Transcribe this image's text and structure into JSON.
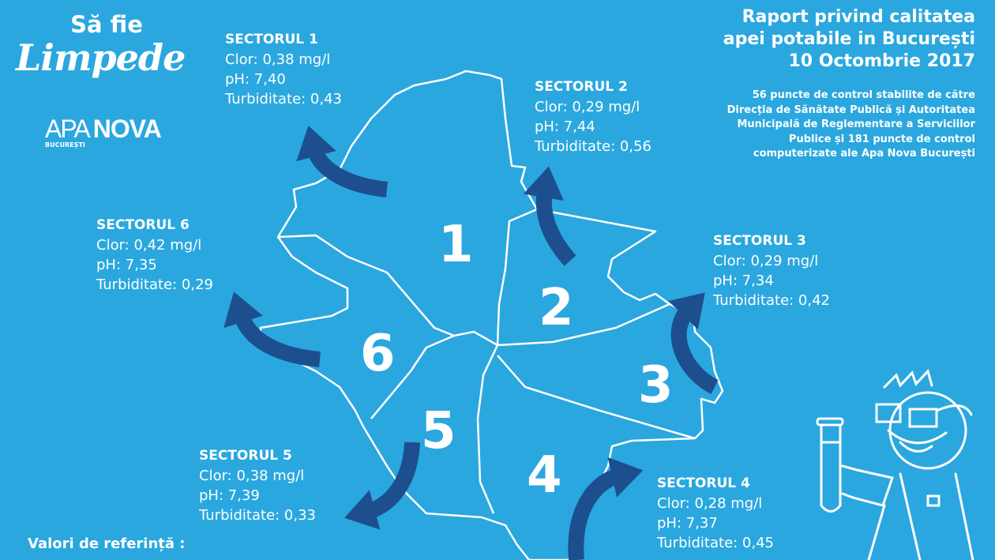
{
  "brand": {
    "line1": "Să fie",
    "line2": "Limpede"
  },
  "logo": {
    "apa": "APA",
    "nova": "NOVA",
    "city": "BUCUREȘTI"
  },
  "title": {
    "lines": [
      "Raport privind calitatea",
      "apei potabile in București",
      "10 Octombrie 2017"
    ]
  },
  "subtitle": {
    "lines": [
      "56 puncte de control stabilite de către",
      "Direcția de Sănătate Publică și Autoritatea",
      "Municipală de Reglementare a Serviciilor",
      "Publice și 181 puncte de control",
      "computerizate ale Apa Nova București"
    ]
  },
  "sectors": [
    {
      "name": "SECTORUL 1",
      "number": "1",
      "clor": "Clor: 0,38 mg/l",
      "ph": "pH: 7,40",
      "turb": "Turbiditate: 0,43"
    },
    {
      "name": "SECTORUL 2",
      "number": "2",
      "clor": "Clor: 0,29 mg/l",
      "ph": "pH: 7,44",
      "turb": "Turbiditate: 0,56"
    },
    {
      "name": "SECTORUL 3",
      "number": "3",
      "clor": "Clor: 0,29 mg/l",
      "ph": "pH: 7,34",
      "turb": "Turbiditate: 0,42"
    },
    {
      "name": "SECTORUL 4",
      "number": "4",
      "clor": "Clor: 0,28 mg/l",
      "ph": "pH: 7,37",
      "turb": "Turbiditate: 0,45"
    },
    {
      "name": "SECTORUL 5",
      "number": "5",
      "clor": "Clor: 0,38 mg/l",
      "ph": "pH: 7,39",
      "turb": "Turbiditate: 0,33"
    },
    {
      "name": "SECTORUL 6",
      "number": "6",
      "clor": "Clor: 0,42 mg/l",
      "ph": "pH: 7,35",
      "turb": "Turbiditate: 0,29"
    }
  ],
  "reference": {
    "label": "Valori de referință :"
  },
  "colors": {
    "background": "#2aa7df",
    "arrow": "#1d4f8e",
    "text": "#ffffff"
  }
}
